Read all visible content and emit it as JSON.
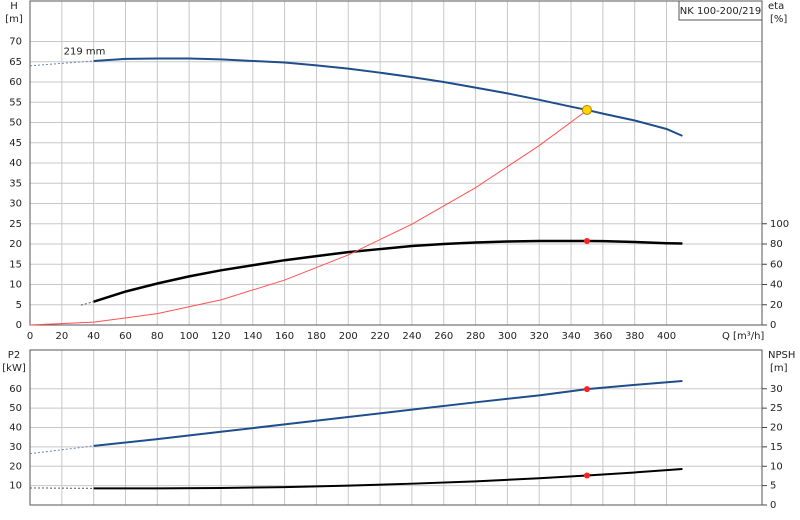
{
  "chart_data": [
    {
      "type": "line",
      "title": "NK 100-200/219",
      "ylabel": "H",
      "yunit": "[m]",
      "y2label": "eta",
      "y2unit": "[%]",
      "xlabel": "Q [m³/h]",
      "annotation": {
        "text": "219 mm",
        "x": 40,
        "y": 67.5
      },
      "xlim": [
        0,
        460
      ],
      "xticks": [
        0,
        20,
        40,
        60,
        80,
        100,
        120,
        140,
        160,
        180,
        200,
        220,
        240,
        260,
        280,
        300,
        320,
        340,
        360,
        380,
        400
      ],
      "ylim": [
        0,
        80
      ],
      "yticks": [
        0,
        5,
        10,
        15,
        20,
        25,
        30,
        35,
        40,
        45,
        50,
        55,
        60,
        65,
        70
      ],
      "y2lim": [
        0,
        320
      ],
      "y2ticks": [
        0,
        20,
        40,
        60,
        80,
        100
      ],
      "series": [
        {
          "color": "#6a86b0",
          "dashed": true,
          "linewidth": 1,
          "axis": "y",
          "x": [
            0,
            40
          ],
          "values": [
            64,
            65.2
          ]
        },
        {
          "color": "#1f4e8c",
          "dashed": false,
          "linewidth": 2,
          "axis": "y",
          "x": [
            40,
            60,
            80,
            100,
            120,
            140,
            160,
            180,
            200,
            220,
            240,
            260,
            280,
            300,
            320,
            340,
            350,
            360,
            380,
            400,
            410
          ],
          "values": [
            65.2,
            65.7,
            65.8,
            65.8,
            65.6,
            65.2,
            64.8,
            64.1,
            63.3,
            62.3,
            61.2,
            60,
            58.6,
            57.2,
            55.6,
            53.9,
            53.1,
            52.2,
            50.5,
            48.4,
            46.7
          ]
        },
        {
          "color": "#555555",
          "dashed": true,
          "linewidth": 1,
          "axis": "y2",
          "x": [
            32,
            40
          ],
          "values": [
            19.6,
            23
          ]
        },
        {
          "color": "#000000",
          "dashed": false,
          "linewidth": 2.5,
          "axis": "y2",
          "x": [
            40,
            60,
            80,
            100,
            120,
            140,
            160,
            180,
            200,
            220,
            240,
            260,
            280,
            300,
            320,
            340,
            350,
            360,
            380,
            400,
            410
          ],
          "values": [
            23,
            33,
            41,
            48,
            54,
            59,
            64,
            68,
            72,
            75,
            78,
            80,
            81.5,
            82.5,
            83,
            83,
            83,
            82.8,
            82,
            80.8,
            80.5
          ]
        },
        {
          "color": "#ff5050",
          "dashed": false,
          "linewidth": 1,
          "axis": "y",
          "x": [
            0,
            40,
            80,
            120,
            160,
            200,
            240,
            280,
            320,
            350
          ],
          "values": [
            0,
            0.7,
            2.8,
            6.2,
            11.1,
            17.3,
            24.9,
            33.9,
            44.3,
            53
          ]
        }
      ],
      "points": [
        {
          "x": 350,
          "y": 53.1,
          "axis": "y",
          "color": "#ffd700"
        },
        {
          "x": 350,
          "y": 83,
          "axis": "y2",
          "color": "#ff2020"
        }
      ]
    },
    {
      "type": "line",
      "ylabel": "P2",
      "yunit": "[kW]",
      "y2label": "NPSH",
      "y2unit": "[m]",
      "xlim": [
        0,
        460
      ],
      "ylim": [
        0,
        80
      ],
      "yticks": [
        10,
        20,
        30,
        40,
        50,
        60
      ],
      "y2lim": [
        0,
        40
      ],
      "y2ticks": [
        0,
        5,
        10,
        15,
        20,
        25,
        30
      ],
      "series": [
        {
          "color": "#6a86b0",
          "dashed": true,
          "linewidth": 1,
          "axis": "y",
          "x": [
            0,
            40
          ],
          "values": [
            26.5,
            30.5
          ]
        },
        {
          "color": "#1f4e8c",
          "dashed": false,
          "linewidth": 2,
          "axis": "y",
          "x": [
            40,
            80,
            120,
            160,
            200,
            240,
            280,
            320,
            350,
            380,
            410
          ],
          "values": [
            30.5,
            34,
            37.8,
            41.6,
            45.4,
            49.2,
            53,
            56.6,
            59.8,
            62,
            64
          ]
        },
        {
          "color": "#555555",
          "dashed": true,
          "linewidth": 1,
          "axis": "y2",
          "x": [
            0,
            40
          ],
          "values": [
            4.4,
            4.3
          ]
        },
        {
          "color": "#000000",
          "dashed": false,
          "linewidth": 2,
          "axis": "y2",
          "x": [
            40,
            80,
            120,
            160,
            200,
            240,
            280,
            320,
            350,
            380,
            410
          ],
          "values": [
            4.3,
            4.3,
            4.4,
            4.6,
            5,
            5.5,
            6.1,
            6.9,
            7.6,
            8.4,
            9.3
          ]
        }
      ],
      "points": [
        {
          "x": 350,
          "y": 59.8,
          "axis": "y",
          "color": "#ff2020"
        },
        {
          "x": 350,
          "y": 7.6,
          "axis": "y2",
          "color": "#ff2020"
        }
      ]
    }
  ]
}
